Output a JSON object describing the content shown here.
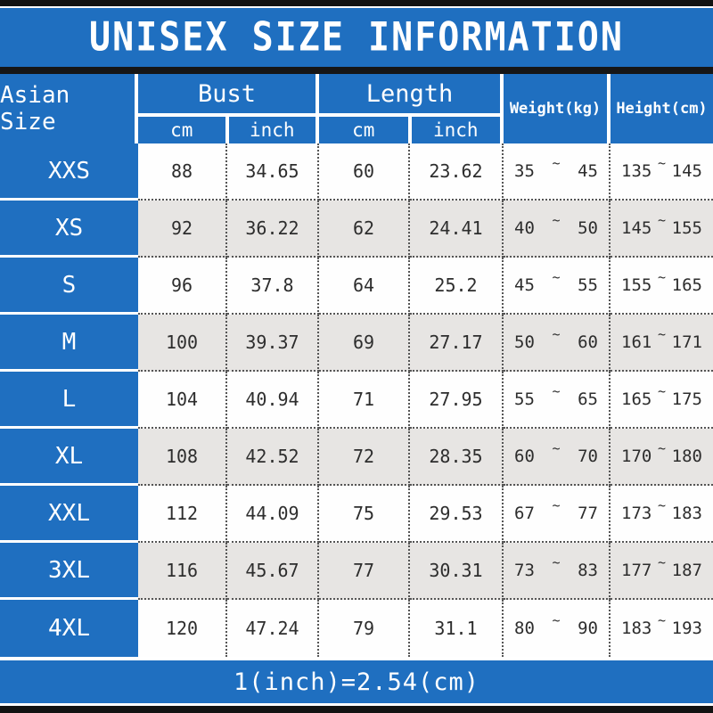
{
  "title": "UNISEX SIZE INFORMATION",
  "colors": {
    "accent_blue": "#1f6fc0",
    "bar_black": "#121212",
    "row_gray": "#e7e5e3",
    "row_white": "#fefefe",
    "text_dark": "#2d2d2d"
  },
  "header": {
    "size_col": "Asian Size",
    "groups": [
      {
        "label": "Bust",
        "subs": [
          "cm",
          "inch"
        ]
      },
      {
        "label": "Length",
        "subs": [
          "cm",
          "inch"
        ]
      }
    ],
    "weight": "Weight(kg)",
    "height": "Height(cm)"
  },
  "tilde": "~",
  "rows": [
    {
      "size": "XXS",
      "bust_cm": "88",
      "bust_inch": "34.65",
      "length_cm": "60",
      "length_inch": "23.62",
      "weight_min": "35",
      "weight_max": "45",
      "height_min": "135",
      "height_max": "145"
    },
    {
      "size": "XS",
      "bust_cm": "92",
      "bust_inch": "36.22",
      "length_cm": "62",
      "length_inch": "24.41",
      "weight_min": "40",
      "weight_max": "50",
      "height_min": "145",
      "height_max": "155"
    },
    {
      "size": "S",
      "bust_cm": "96",
      "bust_inch": "37.8",
      "length_cm": "64",
      "length_inch": "25.2",
      "weight_min": "45",
      "weight_max": "55",
      "height_min": "155",
      "height_max": "165"
    },
    {
      "size": "M",
      "bust_cm": "100",
      "bust_inch": "39.37",
      "length_cm": "69",
      "length_inch": "27.17",
      "weight_min": "50",
      "weight_max": "60",
      "height_min": "161",
      "height_max": "171"
    },
    {
      "size": "L",
      "bust_cm": "104",
      "bust_inch": "40.94",
      "length_cm": "71",
      "length_inch": "27.95",
      "weight_min": "55",
      "weight_max": "65",
      "height_min": "165",
      "height_max": "175"
    },
    {
      "size": "XL",
      "bust_cm": "108",
      "bust_inch": "42.52",
      "length_cm": "72",
      "length_inch": "28.35",
      "weight_min": "60",
      "weight_max": "70",
      "height_min": "170",
      "height_max": "180"
    },
    {
      "size": "XXL",
      "bust_cm": "112",
      "bust_inch": "44.09",
      "length_cm": "75",
      "length_inch": "29.53",
      "weight_min": "67",
      "weight_max": "77",
      "height_min": "173",
      "height_max": "183"
    },
    {
      "size": "3XL",
      "bust_cm": "116",
      "bust_inch": "45.67",
      "length_cm": "77",
      "length_inch": "30.31",
      "weight_min": "73",
      "weight_max": "83",
      "height_min": "177",
      "height_max": "187"
    },
    {
      "size": "4XL",
      "bust_cm": "120",
      "bust_inch": "47.24",
      "length_cm": "79",
      "length_inch": "31.1",
      "weight_min": "80",
      "weight_max": "90",
      "height_min": "183",
      "height_max": "193"
    }
  ],
  "footer_note": "1(inch)=2.54(cm)",
  "chart_data": {
    "type": "table",
    "title": "UNISEX SIZE INFORMATION",
    "columns": [
      "Asian Size",
      "Bust cm",
      "Bust inch",
      "Length cm",
      "Length inch",
      "Weight(kg) min",
      "Weight(kg) max",
      "Height(cm) min",
      "Height(cm) max"
    ],
    "rows": [
      [
        "XXS",
        88,
        34.65,
        60,
        23.62,
        35,
        45,
        135,
        145
      ],
      [
        "XS",
        92,
        36.22,
        62,
        24.41,
        40,
        50,
        145,
        155
      ],
      [
        "S",
        96,
        37.8,
        64,
        25.2,
        45,
        55,
        155,
        165
      ],
      [
        "M",
        100,
        39.37,
        69,
        27.17,
        50,
        60,
        161,
        171
      ],
      [
        "L",
        104,
        40.94,
        71,
        27.95,
        55,
        65,
        165,
        175
      ],
      [
        "XL",
        108,
        42.52,
        72,
        28.35,
        60,
        70,
        170,
        180
      ],
      [
        "XXL",
        112,
        44.09,
        75,
        29.53,
        67,
        77,
        173,
        183
      ],
      [
        "3XL",
        116,
        45.67,
        77,
        30.31,
        73,
        83,
        177,
        187
      ],
      [
        "4XL",
        120,
        47.24,
        79,
        31.1,
        80,
        90,
        183,
        193
      ]
    ],
    "footer": "1(inch)=2.54(cm)"
  }
}
